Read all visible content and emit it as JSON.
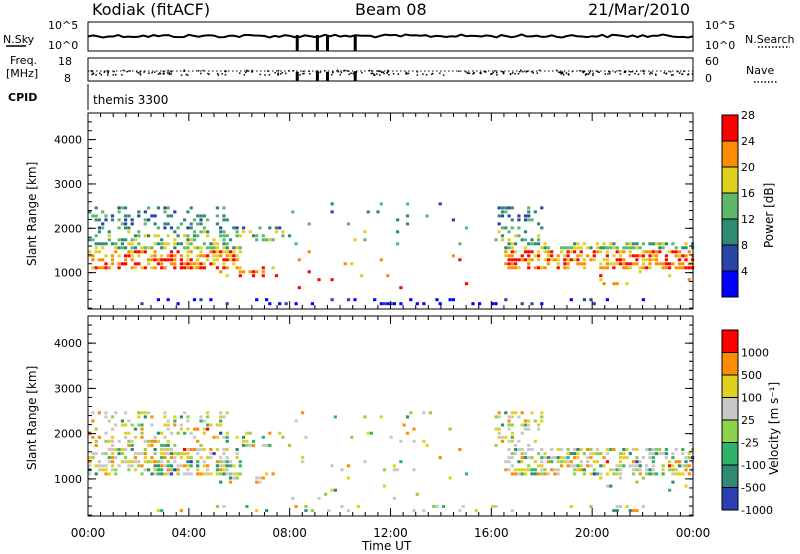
{
  "header": {
    "station": "Kodiak (fitACF)",
    "beam": "Beam 08",
    "date": "21/Mar/2010"
  },
  "top_panel": {
    "left_label": "N.Sky",
    "right_label": "N.Search",
    "y_ticks_left": [
      "10^5",
      "10^0"
    ],
    "y_ticks_right": [
      "10^5",
      "10^0"
    ]
  },
  "freq_panel": {
    "left_label_1": "Freq.",
    "left_label_2": "[MHz]",
    "right_label": "Nave",
    "y_ticks_left": [
      "18",
      "8"
    ],
    "y_ticks_right": [
      "60",
      "0"
    ]
  },
  "cpid": {
    "label": "CPID",
    "program": "themis 3300"
  },
  "chart_data": [
    {
      "type": "heatmap",
      "title": "Power",
      "xlabel": "",
      "ylabel": "Slant Range [km]",
      "xlim_hours": [
        0,
        24
      ],
      "ylim": [
        180,
        4600
      ],
      "x_tick_labels": [
        "00:00",
        "04:00",
        "08:00",
        "12:00",
        "16:00",
        "20:00",
        "00:00"
      ],
      "y_ticks": [
        1000,
        2000,
        3000,
        4000
      ],
      "colorbar": {
        "label": "Power [dB]",
        "tick_labels": [
          "4",
          "8",
          "12",
          "16",
          "20",
          "24",
          "28"
        ],
        "colors": [
          "#0000ff",
          "#2a45a8",
          "#2f8a73",
          "#5fb86a",
          "#e0d020",
          "#ff8c00",
          "#ff0000"
        ]
      }
    },
    {
      "type": "heatmap",
      "title": "Velocity",
      "xlabel": "Time UT",
      "ylabel": "Slant Range [km]",
      "xlim_hours": [
        0,
        24
      ],
      "ylim": [
        180,
        4600
      ],
      "x_tick_labels": [
        "00:00",
        "04:00",
        "08:00",
        "12:00",
        "16:00",
        "20:00",
        "00:00"
      ],
      "y_ticks": [
        1000,
        2000,
        3000,
        4000
      ],
      "colorbar": {
        "label": "Velocity [m s⁻¹]",
        "tick_labels": [
          "1000",
          "500",
          "100",
          "25",
          "-25",
          "-100",
          "-500",
          "-1000"
        ],
        "colors": [
          "#2b3fb0",
          "#2f8a73",
          "#2fb36a",
          "#8ed24a",
          "#c8c8c8",
          "#e0d020",
          "#ff8c00",
          "#ff0000"
        ]
      }
    }
  ]
}
